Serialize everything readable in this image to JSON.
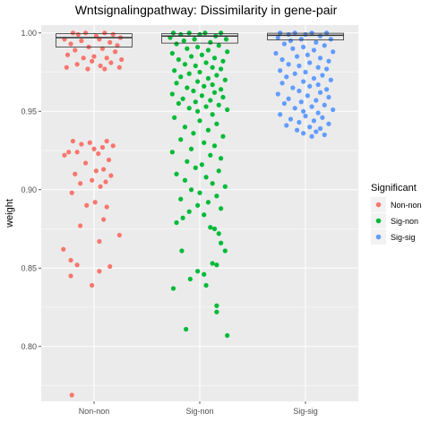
{
  "chart_data": {
    "type": "scatter",
    "title": "Wntsignalingpathway: Dissimilarity in gene-pair",
    "xlabel": "",
    "ylabel": "weight",
    "categories": [
      "Non-non",
      "Sig-non",
      "Sig-sig"
    ],
    "ylim": [
      0.765,
      1.005
    ],
    "yticks": [
      0.8,
      0.85,
      0.9,
      0.95,
      1.0
    ],
    "ytick_labels": [
      "0.80",
      "0.85",
      "0.90",
      "0.95",
      "1.00"
    ],
    "grid": true,
    "legend": {
      "title": "Significant",
      "placement": "right",
      "entries": [
        "Non-non",
        "Sig-non",
        "Sig-sig"
      ]
    },
    "colors": {
      "Non-non": "#F8766D",
      "Sig-non": "#00BA38",
      "Sig-sig": "#619CFF",
      "panel": "#EBEBEB",
      "grid": "#FFFFFF"
    },
    "boxes": [
      {
        "category": "Non-non",
        "q1": 0.991,
        "median": 0.997,
        "q3": 0.9995,
        "max": 1.0
      },
      {
        "category": "Sig-non",
        "q1": 0.9935,
        "median": 0.998,
        "q3": 0.9995,
        "max": 1.0
      },
      {
        "category": "Sig-sig",
        "q1": 0.9955,
        "median": 0.9985,
        "q3": 0.9998,
        "max": 1.0
      }
    ],
    "series": [
      {
        "name": "Non-non",
        "points": [
          [
            -0.2,
            1.0
          ],
          [
            -0.15,
            0.999
          ],
          [
            -0.08,
            1.0
          ],
          [
            0.02,
            0.998
          ],
          [
            0.1,
            1.0
          ],
          [
            0.18,
            0.999
          ],
          [
            0.25,
            0.997
          ],
          [
            -0.28,
            0.996
          ],
          [
            -0.12,
            0.995
          ],
          [
            0.05,
            0.996
          ],
          [
            0.15,
            0.994
          ],
          [
            -0.22,
            0.993
          ],
          [
            0.22,
            0.992
          ],
          [
            -0.05,
            0.991
          ],
          [
            0.08,
            0.99
          ],
          [
            -0.18,
            0.989
          ],
          [
            0.2,
            0.988
          ],
          [
            -0.25,
            0.986
          ],
          [
            0.0,
            0.985
          ],
          [
            0.12,
            0.984
          ],
          [
            -0.1,
            0.984
          ],
          [
            0.26,
            0.983
          ],
          [
            -0.02,
            0.982
          ],
          [
            0.16,
            0.981
          ],
          [
            -0.16,
            0.98
          ],
          [
            0.06,
            0.979
          ],
          [
            -0.26,
            0.978
          ],
          [
            0.24,
            0.978
          ],
          [
            -0.06,
            0.977
          ],
          [
            0.1,
            0.977
          ],
          [
            -0.2,
            0.931
          ],
          [
            -0.04,
            0.93
          ],
          [
            0.12,
            0.931
          ],
          [
            -0.12,
            0.929
          ],
          [
            0.18,
            0.928
          ],
          [
            -0.24,
            0.924
          ],
          [
            0.0,
            0.926
          ],
          [
            0.08,
            0.927
          ],
          [
            -0.16,
            0.924
          ],
          [
            -0.28,
            0.922
          ],
          [
            0.04,
            0.923
          ],
          [
            0.14,
            0.919
          ],
          [
            -0.08,
            0.917
          ],
          [
            0.02,
            0.912
          ],
          [
            -0.18,
            0.91
          ],
          [
            0.09,
            0.913
          ],
          [
            0.16,
            0.909
          ],
          [
            -0.02,
            0.906
          ],
          [
            0.11,
            0.905
          ],
          [
            -0.13,
            0.904
          ],
          [
            0.06,
            0.902
          ],
          [
            -0.21,
            0.898
          ],
          [
            0.01,
            0.892
          ],
          [
            0.12,
            0.889
          ],
          [
            -0.07,
            0.89
          ],
          [
            0.09,
            0.881
          ],
          [
            -0.13,
            0.877
          ],
          [
            0.24,
            0.871
          ],
          [
            0.05,
            0.867
          ],
          [
            -0.29,
            0.862
          ],
          [
            -0.22,
            0.855
          ],
          [
            -0.16,
            0.852
          ],
          [
            0.15,
            0.851
          ],
          [
            -0.22,
            0.845
          ],
          [
            -0.02,
            0.839
          ],
          [
            0.05,
            0.848
          ],
          [
            -0.21,
            0.769
          ]
        ]
      },
      {
        "name": "Sig-non",
        "points": [
          [
            -0.25,
            1.0
          ],
          [
            -0.1,
            1.0
          ],
          [
            0.05,
            1.0
          ],
          [
            0.2,
            1.0
          ],
          [
            -0.18,
            0.999
          ],
          [
            0.0,
            0.999
          ],
          [
            0.15,
            0.998
          ],
          [
            -0.28,
            0.997
          ],
          [
            -0.05,
            0.996
          ],
          [
            0.25,
            0.996
          ],
          [
            -0.15,
            0.995
          ],
          [
            0.1,
            0.994
          ],
          [
            -0.22,
            0.993
          ],
          [
            0.18,
            0.992
          ],
          [
            -0.02,
            0.991
          ],
          [
            -0.12,
            0.99
          ],
          [
            0.08,
            0.989
          ],
          [
            0.26,
            0.988
          ],
          [
            -0.26,
            0.987
          ],
          [
            0.02,
            0.986
          ],
          [
            -0.08,
            0.985
          ],
          [
            0.14,
            0.984
          ],
          [
            -0.2,
            0.983
          ],
          [
            0.22,
            0.982
          ],
          [
            0.06,
            0.981
          ],
          [
            -0.14,
            0.98
          ],
          [
            -0.04,
            0.979
          ],
          [
            0.12,
            0.978
          ],
          [
            0.2,
            0.977
          ],
          [
            -0.24,
            0.976
          ],
          [
            0.0,
            0.975
          ],
          [
            -0.1,
            0.974
          ],
          [
            0.16,
            0.973
          ],
          [
            -0.18,
            0.972
          ],
          [
            0.08,
            0.971
          ],
          [
            0.24,
            0.97
          ],
          [
            -0.02,
            0.969
          ],
          [
            -0.22,
            0.968
          ],
          [
            0.12,
            0.967
          ],
          [
            0.04,
            0.966
          ],
          [
            -0.12,
            0.965
          ],
          [
            0.2,
            0.964
          ],
          [
            -0.06,
            0.963
          ],
          [
            0.14,
            0.962
          ],
          [
            -0.26,
            0.961
          ],
          [
            0.02,
            0.96
          ],
          [
            0.22,
            0.959
          ],
          [
            -0.16,
            0.958
          ],
          [
            0.1,
            0.957
          ],
          [
            -0.04,
            0.956
          ],
          [
            -0.2,
            0.955
          ],
          [
            0.18,
            0.954
          ],
          [
            0.06,
            0.953
          ],
          [
            -0.1,
            0.952
          ],
          [
            0.26,
            0.951
          ],
          [
            -0.02,
            0.95
          ],
          [
            0.12,
            0.948
          ],
          [
            -0.24,
            0.946
          ],
          [
            0.0,
            0.944
          ],
          [
            0.16,
            0.942
          ],
          [
            -0.14,
            0.94
          ],
          [
            0.08,
            0.938
          ],
          [
            -0.06,
            0.936
          ],
          [
            0.22,
            0.934
          ],
          [
            -0.18,
            0.932
          ],
          [
            0.04,
            0.93
          ],
          [
            0.14,
            0.928
          ],
          [
            -0.08,
            0.926
          ],
          [
            -0.26,
            0.924
          ],
          [
            0.1,
            0.922
          ],
          [
            0.2,
            0.92
          ],
          [
            -0.12,
            0.918
          ],
          [
            0.02,
            0.916
          ],
          [
            -0.04,
            0.914
          ],
          [
            0.18,
            0.912
          ],
          [
            -0.22,
            0.91
          ],
          [
            0.06,
            0.908
          ],
          [
            -0.14,
            0.906
          ],
          [
            0.12,
            0.904
          ],
          [
            0.24,
            0.902
          ],
          [
            -0.08,
            0.9
          ],
          [
            0.0,
            0.898
          ],
          [
            0.16,
            0.896
          ],
          [
            -0.18,
            0.894
          ],
          [
            0.08,
            0.892
          ],
          [
            -0.02,
            0.89
          ],
          [
            0.2,
            0.888
          ],
          [
            -0.1,
            0.886
          ],
          [
            0.04,
            0.884
          ],
          [
            -0.16,
            0.882
          ],
          [
            -0.22,
            0.879
          ],
          [
            0.1,
            0.876
          ],
          [
            0.14,
            0.875
          ],
          [
            0.18,
            0.872
          ],
          [
            0.2,
            0.866
          ],
          [
            0.24,
            0.861
          ],
          [
            -0.17,
            0.861
          ],
          [
            0.12,
            0.853
          ],
          [
            0.16,
            0.852
          ],
          [
            -0.02,
            0.848
          ],
          [
            0.04,
            0.846
          ],
          [
            -0.09,
            0.843
          ],
          [
            0.06,
            0.839
          ],
          [
            -0.25,
            0.837
          ],
          [
            0.16,
            0.826
          ],
          [
            0.16,
            0.822
          ],
          [
            -0.13,
            0.811
          ],
          [
            0.26,
            0.807
          ]
        ]
      },
      {
        "name": "Sig-sig",
        "points": [
          [
            -0.24,
            1.0
          ],
          [
            -0.1,
            1.0
          ],
          [
            0.06,
            1.0
          ],
          [
            0.2,
            1.0
          ],
          [
            -0.16,
            0.999
          ],
          [
            0.0,
            0.999
          ],
          [
            0.14,
            0.998
          ],
          [
            -0.26,
            0.997
          ],
          [
            -0.04,
            0.996
          ],
          [
            0.24,
            0.996
          ],
          [
            -0.14,
            0.995
          ],
          [
            0.1,
            0.994
          ],
          [
            -0.2,
            0.993
          ],
          [
            0.18,
            0.992
          ],
          [
            -0.02,
            0.991
          ],
          [
            -0.12,
            0.99
          ],
          [
            0.08,
            0.989
          ],
          [
            0.26,
            0.988
          ],
          [
            -0.28,
            0.987
          ],
          [
            0.02,
            0.986
          ],
          [
            -0.08,
            0.985
          ],
          [
            0.14,
            0.984
          ],
          [
            -0.22,
            0.983
          ],
          [
            0.22,
            0.982
          ],
          [
            0.04,
            0.981
          ],
          [
            -0.16,
            0.98
          ],
          [
            -0.06,
            0.979
          ],
          [
            0.12,
            0.978
          ],
          [
            0.2,
            0.977
          ],
          [
            -0.24,
            0.976
          ],
          [
            0.0,
            0.975
          ],
          [
            -0.1,
            0.974
          ],
          [
            0.16,
            0.973
          ],
          [
            -0.18,
            0.972
          ],
          [
            0.08,
            0.971
          ],
          [
            0.24,
            0.97
          ],
          [
            -0.02,
            0.969
          ],
          [
            -0.22,
            0.968
          ],
          [
            0.12,
            0.967
          ],
          [
            0.04,
            0.966
          ],
          [
            -0.12,
            0.965
          ],
          [
            0.2,
            0.964
          ],
          [
            -0.06,
            0.963
          ],
          [
            0.14,
            0.962
          ],
          [
            -0.26,
            0.961
          ],
          [
            0.02,
            0.96
          ],
          [
            0.22,
            0.959
          ],
          [
            -0.16,
            0.958
          ],
          [
            0.1,
            0.957
          ],
          [
            -0.04,
            0.956
          ],
          [
            -0.2,
            0.955
          ],
          [
            0.18,
            0.954
          ],
          [
            0.06,
            0.953
          ],
          [
            -0.1,
            0.952
          ],
          [
            0.26,
            0.951
          ],
          [
            -0.02,
            0.95
          ],
          [
            0.12,
            0.949
          ],
          [
            -0.24,
            0.948
          ],
          [
            0.0,
            0.947
          ],
          [
            0.16,
            0.946
          ],
          [
            -0.14,
            0.945
          ],
          [
            0.08,
            0.944
          ],
          [
            -0.06,
            0.943
          ],
          [
            0.22,
            0.942
          ],
          [
            -0.18,
            0.941
          ],
          [
            0.04,
            0.94
          ],
          [
            0.14,
            0.939
          ],
          [
            -0.08,
            0.938
          ],
          [
            0.1,
            0.937
          ],
          [
            -0.02,
            0.936
          ],
          [
            0.18,
            0.935
          ],
          [
            0.06,
            0.934
          ]
        ]
      }
    ]
  }
}
